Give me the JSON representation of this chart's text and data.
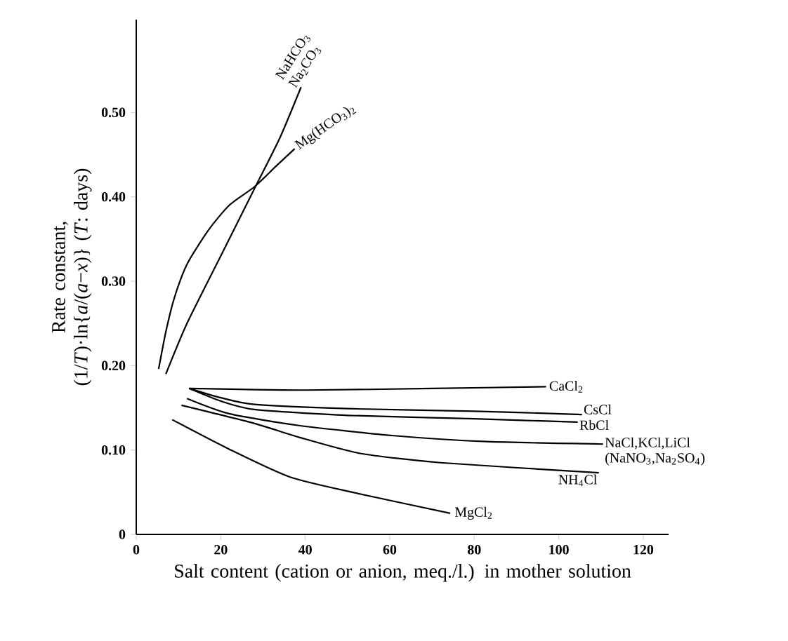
{
  "chart_data": {
    "type": "line",
    "xlabel": "Salt content  (cation or anion, meq./l.) in mother solution",
    "ylabel": "Rate constant, (1/*T*)·ln{*a*/(*a*−*x*)} (*T*: days)",
    "xlim": [
      0,
      126
    ],
    "ylim": [
      0,
      0.61
    ],
    "xticks": [
      0,
      20,
      40,
      60,
      80,
      100,
      120
    ],
    "yticks": [
      0,
      {
        "value": 0.1,
        "label": "0.10"
      },
      {
        "value": 0.2,
        "label": "0.20"
      },
      {
        "value": 0.3,
        "label": "0.30"
      },
      {
        "value": 0.4,
        "label": "0.40"
      },
      {
        "value": 0.5,
        "label": "0.50"
      }
    ],
    "series": [
      {
        "name": "NaHCO$_{3}$ Na$_{2}$CO$_{3}$",
        "color": "#000000",
        "x": [
          7,
          12,
          20,
          28,
          34,
          39
        ],
        "values": [
          0.19,
          0.25,
          0.33,
          0.41,
          0.47,
          0.53
        ]
      },
      {
        "name": "Mg(HCO$_{3}$)$_{2}$",
        "color": "#000000",
        "x": [
          5.3,
          7,
          9,
          12,
          17,
          22,
          28,
          33,
          37.5
        ],
        "values": [
          0.196,
          0.24,
          0.28,
          0.32,
          0.36,
          0.39,
          0.412,
          0.436,
          0.457
        ]
      },
      {
        "name": "CaCl$_{2}$",
        "color": "#000000",
        "x": [
          12.5,
          40,
          70,
          97
        ],
        "values": [
          0.173,
          0.171,
          0.173,
          0.175
        ]
      },
      {
        "name": "CsCl",
        "color": "#000000",
        "x": [
          12.5,
          20,
          28,
          50,
          80,
          105.5
        ],
        "values": [
          0.173,
          0.162,
          0.154,
          0.149,
          0.146,
          0.142
        ]
      },
      {
        "name": "RbCl",
        "color": "#000000",
        "x": [
          12.5,
          20,
          28,
          50,
          80,
          104.5
        ],
        "values": [
          0.173,
          0.158,
          0.148,
          0.141,
          0.137,
          0.133
        ]
      },
      {
        "name": "NaCl,KCl,LiCl (NaNO$_{3}$,Na$_{2}$SO$_{4}$)",
        "color": "#000000",
        "x": [
          12,
          22,
          38.5,
          61,
          83,
          110.5
        ],
        "values": [
          0.161,
          0.143,
          0.129,
          0.117,
          0.11,
          0.107
        ]
      },
      {
        "name": "NH$_{4}$Cl",
        "color": "#000000",
        "x": [
          10.7,
          27.6,
          38.6,
          53,
          72,
          109.5
        ],
        "values": [
          0.153,
          0.132,
          0.115,
          0.096,
          0.085,
          0.073
        ]
      },
      {
        "name": "MgCl$_{2}$",
        "color": "#000000",
        "x": [
          8.5,
          22,
          36.4,
          52,
          74.3
        ],
        "values": [
          0.136,
          0.101,
          0.068,
          0.049,
          0.025
        ]
      }
    ]
  }
}
